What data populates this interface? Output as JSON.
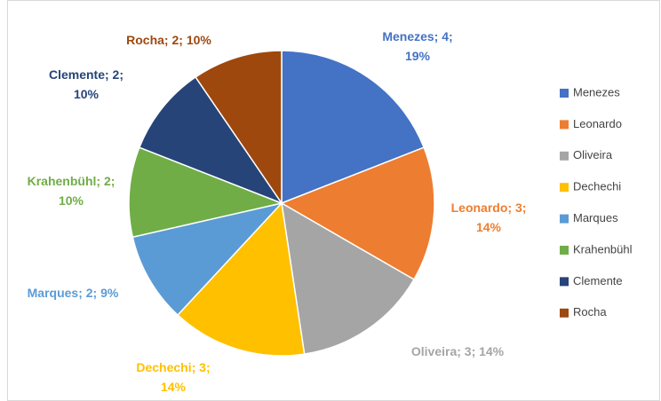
{
  "chart_data": {
    "type": "pie",
    "categories": [
      "Menezes",
      "Leonardo",
      "Oliveira",
      "Dechechi",
      "Marques",
      "Krahenbühl",
      "Clemente",
      "Rocha"
    ],
    "values": [
      4,
      3,
      3,
      3,
      2,
      2,
      2,
      2
    ],
    "value_labels": [
      "Menezes; 4; 19%",
      "Leonardo; 3; 14%",
      "Oliveira; 3; 14%",
      "Dechechi; 3; 14%",
      "Marques; 2; 9%",
      "Krahenbühl; 2; 10%",
      "Clemente; 2; 10%",
      "Rocha; 2; 10%"
    ],
    "colors": [
      "#4472c4",
      "#ed7d31",
      "#a5a5a5",
      "#ffc000",
      "#5b9bd5",
      "#70ad47",
      "#264478",
      "#9e480e"
    ],
    "legend": "right"
  }
}
